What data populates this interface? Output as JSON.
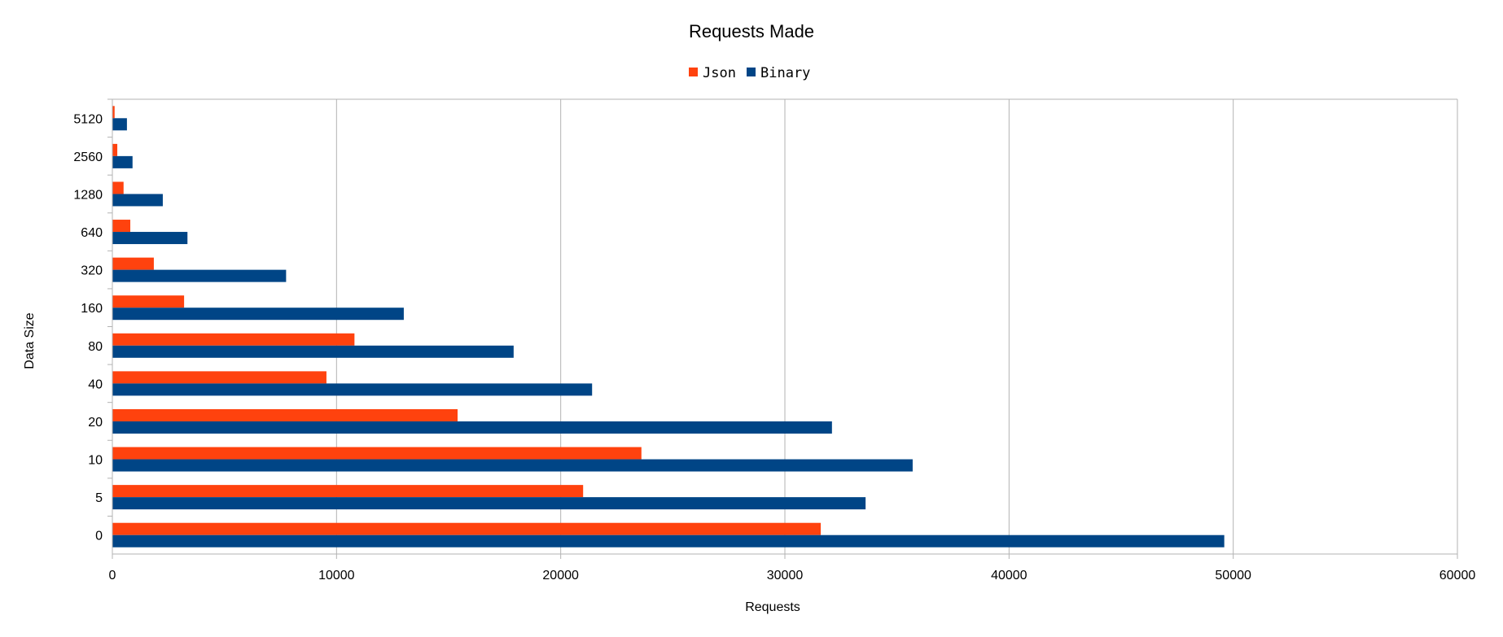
{
  "chart_data": {
    "type": "bar",
    "orientation": "horizontal",
    "title": "Requests Made",
    "xlabel": "Requests",
    "ylabel": "Data Size",
    "categories": [
      "0",
      "5",
      "10",
      "20",
      "40",
      "80",
      "160",
      "320",
      "640",
      "1280",
      "2560",
      "5120"
    ],
    "series": [
      {
        "name": "Json",
        "color": "#ff420e",
        "values": [
          31600,
          21000,
          23600,
          15400,
          9550,
          10800,
          3200,
          1850,
          800,
          500,
          220,
          100
        ]
      },
      {
        "name": "Binary",
        "color": "#004586",
        "values": [
          49600,
          33600,
          35700,
          32100,
          21400,
          17900,
          13000,
          7750,
          3350,
          2250,
          900,
          650
        ]
      }
    ],
    "xlim": [
      0,
      60000
    ],
    "xticks": [
      "0",
      "10000",
      "20000",
      "30000",
      "40000",
      "50000",
      "60000"
    ],
    "grid": true,
    "legend_position": "top"
  }
}
